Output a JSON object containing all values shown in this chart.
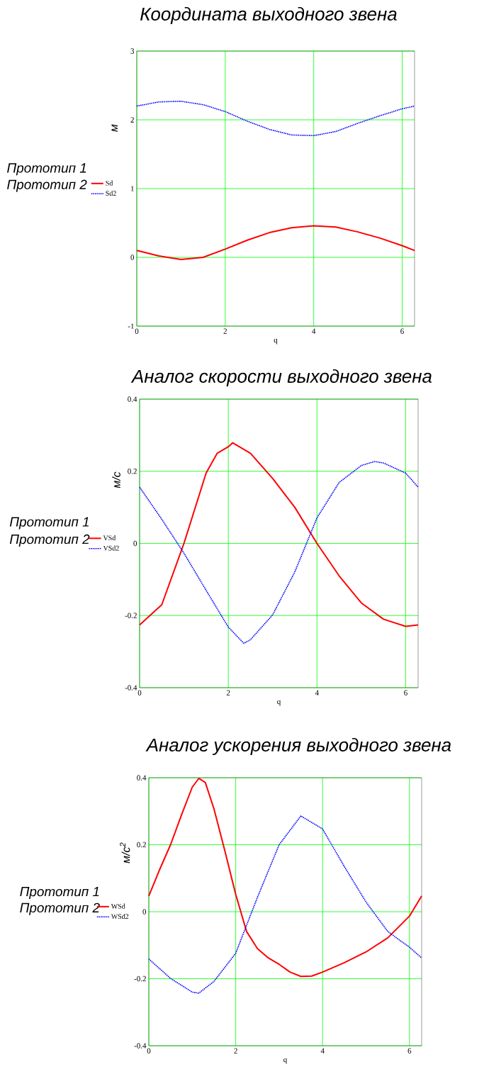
{
  "chart_data": [
    {
      "type": "line",
      "title": "Координата выходного звена",
      "xlabel": "q",
      "ylabel": "м",
      "xlim": [
        0,
        6.28
      ],
      "ylim": [
        -1,
        3
      ],
      "xticks": [
        0,
        2,
        4,
        6
      ],
      "yticks": [
        -1,
        0,
        1,
        2,
        3
      ],
      "grid": true,
      "legend": "left",
      "annotations": [
        "Прототип 1",
        "Прототип 2"
      ],
      "series": [
        {
          "name": "Sd",
          "color": "#ff0000",
          "line_style": "solid",
          "x": [
            0,
            0.5,
            1,
            1.5,
            2,
            2.5,
            3,
            3.5,
            4,
            4.5,
            5,
            5.5,
            6,
            6.28
          ],
          "values": [
            0.1,
            0.02,
            -0.03,
            0.0,
            0.12,
            0.25,
            0.36,
            0.43,
            0.46,
            0.44,
            0.37,
            0.28,
            0.17,
            0.1
          ]
        },
        {
          "name": "Sd2",
          "color": "#0000ff",
          "line_style": "dotted",
          "x": [
            0,
            0.5,
            1,
            1.5,
            2,
            2.5,
            3,
            3.5,
            4,
            4.5,
            5,
            5.5,
            6,
            6.28
          ],
          "values": [
            2.2,
            2.26,
            2.27,
            2.22,
            2.12,
            1.98,
            1.86,
            1.78,
            1.77,
            1.83,
            1.95,
            2.06,
            2.16,
            2.2
          ]
        }
      ]
    },
    {
      "type": "line",
      "title": "Аналог скорости выходного звена",
      "xlabel": "q",
      "ylabel": "м/с",
      "xlim": [
        0,
        6.28
      ],
      "ylim": [
        -0.4,
        0.4
      ],
      "xticks": [
        0,
        2,
        4,
        6
      ],
      "yticks": [
        -0.4,
        -0.2,
        0,
        0.2,
        0.4
      ],
      "grid": true,
      "legend": "left",
      "annotations": [
        "Прототип 1",
        "Прототип 2"
      ],
      "series": [
        {
          "name": "VSd",
          "color": "#ff0000",
          "line_style": "solid",
          "x": [
            0,
            0.5,
            1,
            1.5,
            1.75,
            2,
            2.1,
            2.5,
            3,
            3.5,
            4,
            4.5,
            5,
            5.5,
            6,
            6.28
          ],
          "values": [
            -0.226,
            -0.17,
            0,
            0.195,
            0.25,
            0.268,
            0.279,
            0.25,
            0.18,
            0.1,
            0,
            -0.09,
            -0.165,
            -0.21,
            -0.23,
            -0.226
          ]
        },
        {
          "name": "VSd2",
          "color": "#0000ff",
          "line_style": "dotted",
          "x": [
            0,
            0.5,
            1,
            1.5,
            2,
            2.35,
            2.5,
            3,
            3.5,
            4,
            4.5,
            5,
            5.3,
            5.5,
            6,
            6.28
          ],
          "values": [
            0.156,
            0.067,
            -0.027,
            -0.13,
            -0.232,
            -0.277,
            -0.267,
            -0.198,
            -0.079,
            0.071,
            0.169,
            0.216,
            0.227,
            0.223,
            0.195,
            0.156
          ]
        }
      ]
    },
    {
      "type": "line",
      "title": "Аналог ускорения выходного звена",
      "xlabel": "q",
      "ylabel": "м/с$^{2}$",
      "xlim": [
        0,
        6.28
      ],
      "ylim": [
        -0.4,
        0.4
      ],
      "xticks": [
        0,
        2,
        4,
        6
      ],
      "yticks": [
        -0.4,
        -0.2,
        0,
        0.2,
        0.4
      ],
      "grid": true,
      "legend": "left",
      "annotations": [
        "Прототип 1",
        "Прототип 2"
      ],
      "series": [
        {
          "name": "WSd",
          "color": "#ff0000",
          "line_style": "solid",
          "x": [
            0,
            0.25,
            0.5,
            0.75,
            1,
            1.15,
            1.3,
            1.5,
            1.75,
            2,
            2.25,
            2.5,
            2.75,
            3,
            3.25,
            3.5,
            3.75,
            4,
            4.5,
            5,
            5.5,
            6,
            6.28
          ],
          "values": [
            0.047,
            0.126,
            0.2,
            0.288,
            0.372,
            0.398,
            0.386,
            0.307,
            0.182,
            0.052,
            -0.059,
            -0.11,
            -0.138,
            -0.157,
            -0.18,
            -0.193,
            -0.192,
            -0.18,
            -0.152,
            -0.12,
            -0.078,
            -0.013,
            0.047
          ]
        },
        {
          "name": "WSd2",
          "color": "#0000ff",
          "line_style": "dotted",
          "x": [
            0,
            0.5,
            1,
            1.15,
            1.5,
            2,
            2.5,
            3,
            3.5,
            4,
            4.5,
            5,
            5.5,
            6,
            6.28
          ],
          "values": [
            -0.141,
            -0.199,
            -0.24,
            -0.243,
            -0.208,
            -0.124,
            0.043,
            0.2,
            0.286,
            0.247,
            0.135,
            0.029,
            -0.059,
            -0.106,
            -0.138
          ]
        }
      ]
    }
  ]
}
